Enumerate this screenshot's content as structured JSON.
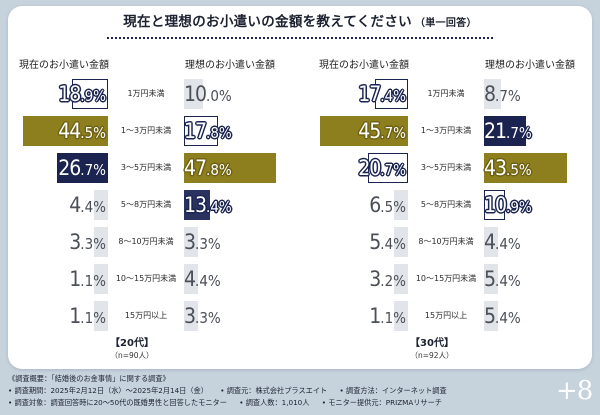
{
  "title": "現在と理想のお小遣いの金額を教えてください",
  "title_note": "（単一回答）",
  "colors": {
    "navy": "#1b2450",
    "olive": "#8e7f1e",
    "light": "#e1e4e9",
    "background": "#c6d2dc"
  },
  "chart_data": [
    {
      "type": "bar",
      "group_label": "【20代】",
      "sample": "（n=90人）",
      "categories": [
        "1万円未満",
        "1～3万円未満",
        "3～5万円未満",
        "5～8万円未満",
        "8～10万円未満",
        "10～15万円未満",
        "15万円以上"
      ],
      "series": [
        {
          "name": "現在のお小遣い金額",
          "values": [
            18.9,
            44.5,
            26.7,
            4.4,
            3.3,
            1.1,
            1.1
          ]
        },
        {
          "name": "理想のお小遣い金額",
          "values": [
            10.0,
            17.8,
            47.8,
            13.4,
            3.3,
            4.4,
            3.3
          ]
        }
      ],
      "highlight": {
        "current": [
          "outline",
          "olive",
          "navy",
          "",
          "",
          "",
          ""
        ],
        "ideal": [
          "",
          "outline",
          "olive",
          "mid",
          "",
          "",
          ""
        ]
      }
    },
    {
      "type": "bar",
      "group_label": "【30代】",
      "sample": "（n=92人）",
      "categories": [
        "1万円未満",
        "1～3万円未満",
        "3～5万円未満",
        "5～8万円未満",
        "8～10万円未満",
        "10～15万円未満",
        "15万円以上"
      ],
      "series": [
        {
          "name": "現在のお小遣い金額",
          "values": [
            17.4,
            45.7,
            20.7,
            6.5,
            5.4,
            3.2,
            1.1
          ]
        },
        {
          "name": "理想のお小遣い金額",
          "values": [
            8.7,
            21.7,
            43.5,
            10.9,
            4.4,
            5.4,
            5.4
          ]
        }
      ],
      "highlight": {
        "current": [
          "outline",
          "olive",
          "outline",
          "",
          "",
          "",
          ""
        ],
        "ideal": [
          "",
          "navy",
          "olive",
          "outline",
          "",
          "",
          ""
        ]
      }
    }
  ],
  "footer": {
    "line1": "《調査概要：「結婚後のお金事情」に関する調査》",
    "line2": [
      "• 調査期間：2025年2月12日（水）～2025年2月14日（金）",
      "• 調査元：株式会社プラスエイト",
      "• 調査方法：インターネット調査"
    ],
    "line3": [
      "• 調査対象：調査回答時に20～50代の既婚男性と回答したモニター",
      "• 調査人数：1,010人",
      "• モニター提供元：PRIZMAリサーチ"
    ]
  },
  "logo_text": "+8"
}
